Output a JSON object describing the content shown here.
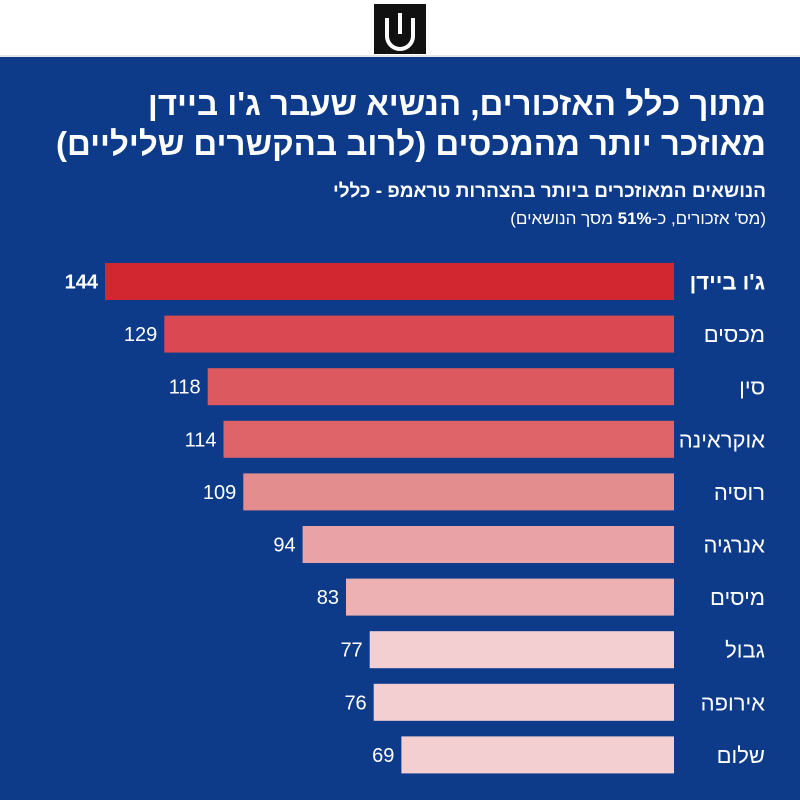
{
  "header": {
    "logo_icon": "shield-candle-logo-icon"
  },
  "title_lines": [
    "מתוך כלל האזכורים, הנשיא שעבר ג'ו ביידן",
    "מאוזכר יותר מהמכסים (לרוב בהקשרים שליליים)"
  ],
  "subtitle": "הנושאים המאוזכרים ביותר בהצהרות טראמפ - כללי",
  "note": {
    "prefix": "(מס' אזכורים, כ-",
    "bold": "51%",
    "suffix": " מסך הנושאים)"
  },
  "colors": {
    "background": "#0d3b8a",
    "bars": [
      "#d22630",
      "#da4951",
      "#dd5960",
      "#df646a",
      "#e48d8f",
      "#e9a3a6",
      "#edb1b3",
      "#f3cfd1",
      "#f3cfd1",
      "#f3cfd1"
    ]
  },
  "chart_data": {
    "type": "bar",
    "orientation": "horizontal",
    "title": "מתוך כלל האזכורים, הנשיא שעבר ג'ו ביידן מאוזכר יותר מהמכסים (לרוב בהקשרים שליליים)",
    "subtitle": "הנושאים המאוזכרים ביותר בהצהרות טראמפ - כללי",
    "categories": [
      "ג'ו ביידן",
      "מכסים",
      "סין",
      "אוקראינה",
      "רוסיה",
      "אנרגיה",
      "מיסים",
      "גבול",
      "אירופה",
      "שלום"
    ],
    "values": [
      144,
      129,
      118,
      114,
      109,
      94,
      83,
      77,
      76,
      69
    ],
    "value_labels": [
      "144",
      "129",
      "118",
      "114",
      "109",
      "94",
      "83",
      "77",
      "76",
      "69"
    ],
    "highlight_index": 0,
    "xlim": [
      0,
      144
    ],
    "xlabel": "",
    "ylabel": "",
    "grid": false,
    "direction": "right-to-left"
  }
}
